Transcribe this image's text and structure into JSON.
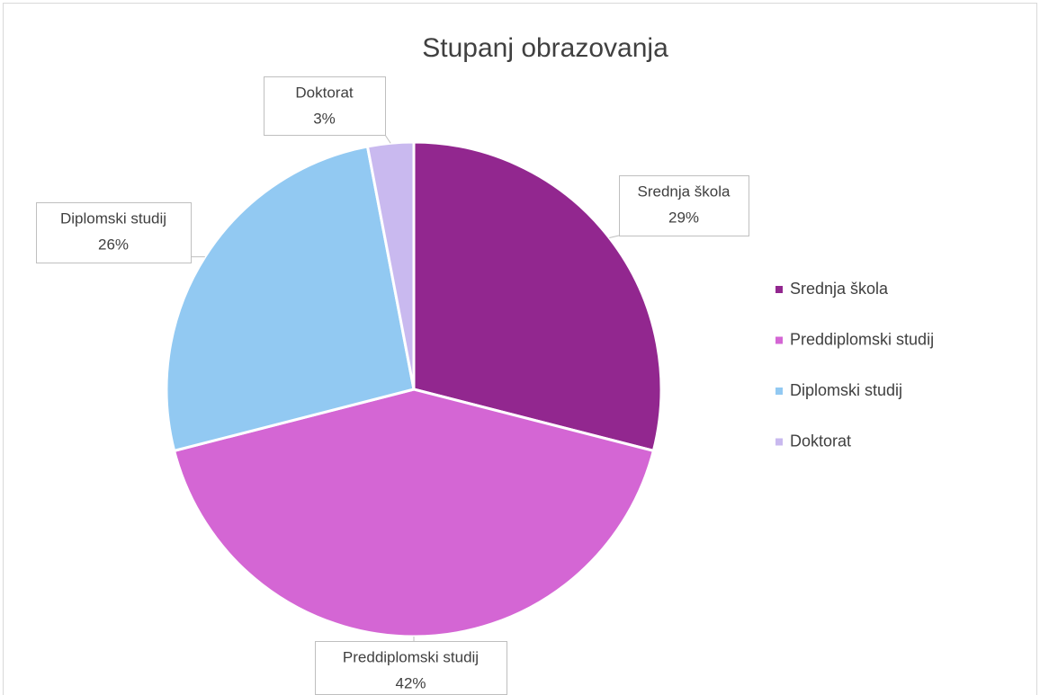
{
  "chart_data": {
    "type": "pie",
    "title": "Stupanj obrazovanja",
    "categories": [
      "Srednja škola",
      "Preddiplomski studij",
      "Diplomski studij",
      "Doktorat"
    ],
    "values": [
      29,
      42,
      26,
      3
    ],
    "value_labels": [
      "29%",
      "42%",
      "26%",
      "3%"
    ],
    "colors": [
      "#92278f",
      "#d466d4",
      "#92c9f2",
      "#c9b9ef"
    ],
    "legend": "right"
  }
}
